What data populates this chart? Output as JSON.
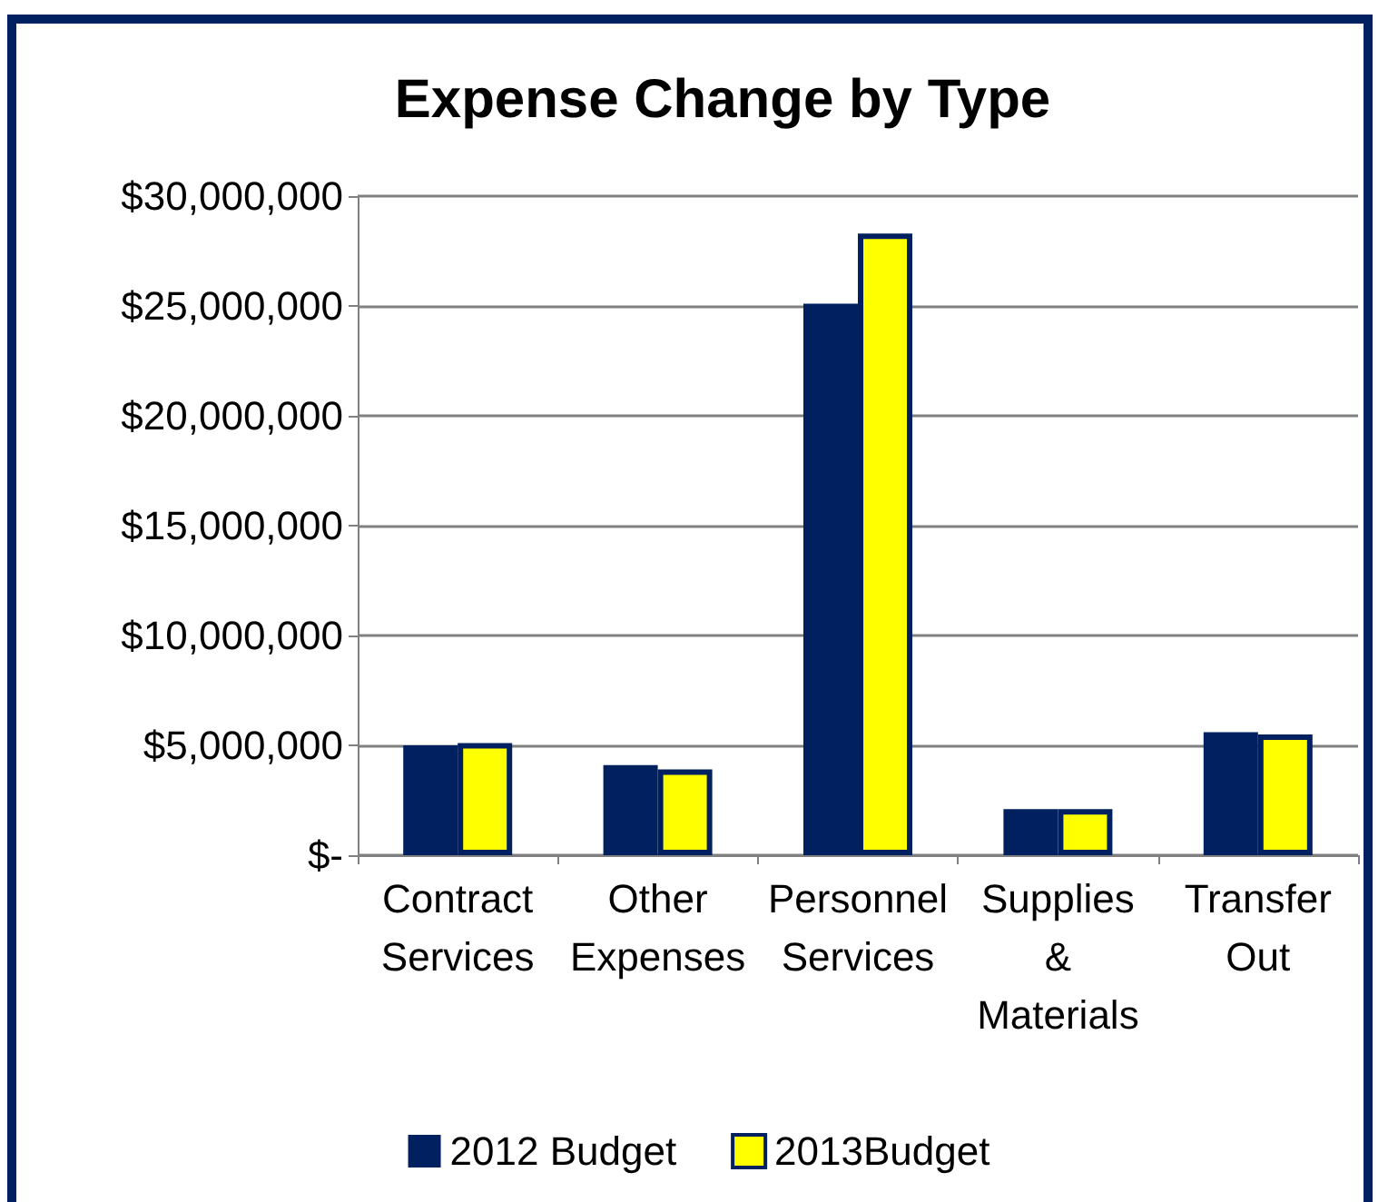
{
  "chart_data": {
    "type": "bar",
    "title": "Expense Change by Type",
    "categories": [
      "Contract Services",
      "Other Expenses",
      "Personnel Services",
      "Supplies & Materials",
      "Transfer Out"
    ],
    "series": [
      {
        "name": "2012 Budget",
        "color": "#002060",
        "values": [
          5000000,
          4100000,
          25100000,
          2100000,
          5600000
        ]
      },
      {
        "name": "2013Budget",
        "color": "#ffff00",
        "values": [
          5100000,
          3900000,
          28300000,
          2100000,
          5500000
        ]
      }
    ],
    "ylim": [
      0,
      30000000
    ],
    "yticks": [
      {
        "value": 0,
        "label": "$-"
      },
      {
        "value": 5000000,
        "label": "$5,000,000"
      },
      {
        "value": 10000000,
        "label": "$10,000,000"
      },
      {
        "value": 15000000,
        "label": "$15,000,000"
      },
      {
        "value": 20000000,
        "label": "$20,000,000"
      },
      {
        "value": 25000000,
        "label": "$25,000,000"
      },
      {
        "value": 30000000,
        "label": "$30,000,000"
      }
    ],
    "grid": "y",
    "legend": "bottom"
  }
}
